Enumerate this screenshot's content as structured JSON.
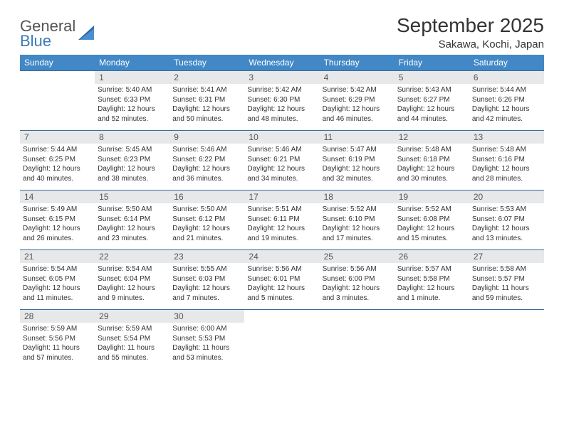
{
  "brand": {
    "line1": "General",
    "line2": "Blue"
  },
  "title": "September 2025",
  "location": "Sakawa, Kochi, Japan",
  "colors": {
    "header_bg": "#4288c6",
    "header_text": "#ffffff",
    "daynum_bg": "#e6e8ea",
    "daynum_text": "#555555",
    "border": "#3a6a9a",
    "body_text": "#333333",
    "logo_gray": "#555555",
    "logo_blue": "#3a7ab8",
    "page_bg": "#ffffff"
  },
  "typography": {
    "title_fontsize": 28,
    "location_fontsize": 15,
    "dayhead_fontsize": 12,
    "daynum_fontsize": 12,
    "info_fontsize": 10,
    "logo_fontsize": 22
  },
  "day_headers": [
    "Sunday",
    "Monday",
    "Tuesday",
    "Wednesday",
    "Thursday",
    "Friday",
    "Saturday"
  ],
  "weeks": [
    [
      {
        "n": "",
        "sr": "",
        "ss": "",
        "dl": "",
        "empty": true
      },
      {
        "n": "1",
        "sr": "Sunrise: 5:40 AM",
        "ss": "Sunset: 6:33 PM",
        "dl": "Daylight: 12 hours and 52 minutes."
      },
      {
        "n": "2",
        "sr": "Sunrise: 5:41 AM",
        "ss": "Sunset: 6:31 PM",
        "dl": "Daylight: 12 hours and 50 minutes."
      },
      {
        "n": "3",
        "sr": "Sunrise: 5:42 AM",
        "ss": "Sunset: 6:30 PM",
        "dl": "Daylight: 12 hours and 48 minutes."
      },
      {
        "n": "4",
        "sr": "Sunrise: 5:42 AM",
        "ss": "Sunset: 6:29 PM",
        "dl": "Daylight: 12 hours and 46 minutes."
      },
      {
        "n": "5",
        "sr": "Sunrise: 5:43 AM",
        "ss": "Sunset: 6:27 PM",
        "dl": "Daylight: 12 hours and 44 minutes."
      },
      {
        "n": "6",
        "sr": "Sunrise: 5:44 AM",
        "ss": "Sunset: 6:26 PM",
        "dl": "Daylight: 12 hours and 42 minutes."
      }
    ],
    [
      {
        "n": "7",
        "sr": "Sunrise: 5:44 AM",
        "ss": "Sunset: 6:25 PM",
        "dl": "Daylight: 12 hours and 40 minutes."
      },
      {
        "n": "8",
        "sr": "Sunrise: 5:45 AM",
        "ss": "Sunset: 6:23 PM",
        "dl": "Daylight: 12 hours and 38 minutes."
      },
      {
        "n": "9",
        "sr": "Sunrise: 5:46 AM",
        "ss": "Sunset: 6:22 PM",
        "dl": "Daylight: 12 hours and 36 minutes."
      },
      {
        "n": "10",
        "sr": "Sunrise: 5:46 AM",
        "ss": "Sunset: 6:21 PM",
        "dl": "Daylight: 12 hours and 34 minutes."
      },
      {
        "n": "11",
        "sr": "Sunrise: 5:47 AM",
        "ss": "Sunset: 6:19 PM",
        "dl": "Daylight: 12 hours and 32 minutes."
      },
      {
        "n": "12",
        "sr": "Sunrise: 5:48 AM",
        "ss": "Sunset: 6:18 PM",
        "dl": "Daylight: 12 hours and 30 minutes."
      },
      {
        "n": "13",
        "sr": "Sunrise: 5:48 AM",
        "ss": "Sunset: 6:16 PM",
        "dl": "Daylight: 12 hours and 28 minutes."
      }
    ],
    [
      {
        "n": "14",
        "sr": "Sunrise: 5:49 AM",
        "ss": "Sunset: 6:15 PM",
        "dl": "Daylight: 12 hours and 26 minutes."
      },
      {
        "n": "15",
        "sr": "Sunrise: 5:50 AM",
        "ss": "Sunset: 6:14 PM",
        "dl": "Daylight: 12 hours and 23 minutes."
      },
      {
        "n": "16",
        "sr": "Sunrise: 5:50 AM",
        "ss": "Sunset: 6:12 PM",
        "dl": "Daylight: 12 hours and 21 minutes."
      },
      {
        "n": "17",
        "sr": "Sunrise: 5:51 AM",
        "ss": "Sunset: 6:11 PM",
        "dl": "Daylight: 12 hours and 19 minutes."
      },
      {
        "n": "18",
        "sr": "Sunrise: 5:52 AM",
        "ss": "Sunset: 6:10 PM",
        "dl": "Daylight: 12 hours and 17 minutes."
      },
      {
        "n": "19",
        "sr": "Sunrise: 5:52 AM",
        "ss": "Sunset: 6:08 PM",
        "dl": "Daylight: 12 hours and 15 minutes."
      },
      {
        "n": "20",
        "sr": "Sunrise: 5:53 AM",
        "ss": "Sunset: 6:07 PM",
        "dl": "Daylight: 12 hours and 13 minutes."
      }
    ],
    [
      {
        "n": "21",
        "sr": "Sunrise: 5:54 AM",
        "ss": "Sunset: 6:05 PM",
        "dl": "Daylight: 12 hours and 11 minutes."
      },
      {
        "n": "22",
        "sr": "Sunrise: 5:54 AM",
        "ss": "Sunset: 6:04 PM",
        "dl": "Daylight: 12 hours and 9 minutes."
      },
      {
        "n": "23",
        "sr": "Sunrise: 5:55 AM",
        "ss": "Sunset: 6:03 PM",
        "dl": "Daylight: 12 hours and 7 minutes."
      },
      {
        "n": "24",
        "sr": "Sunrise: 5:56 AM",
        "ss": "Sunset: 6:01 PM",
        "dl": "Daylight: 12 hours and 5 minutes."
      },
      {
        "n": "25",
        "sr": "Sunrise: 5:56 AM",
        "ss": "Sunset: 6:00 PM",
        "dl": "Daylight: 12 hours and 3 minutes."
      },
      {
        "n": "26",
        "sr": "Sunrise: 5:57 AM",
        "ss": "Sunset: 5:58 PM",
        "dl": "Daylight: 12 hours and 1 minute."
      },
      {
        "n": "27",
        "sr": "Sunrise: 5:58 AM",
        "ss": "Sunset: 5:57 PM",
        "dl": "Daylight: 11 hours and 59 minutes."
      }
    ],
    [
      {
        "n": "28",
        "sr": "Sunrise: 5:59 AM",
        "ss": "Sunset: 5:56 PM",
        "dl": "Daylight: 11 hours and 57 minutes."
      },
      {
        "n": "29",
        "sr": "Sunrise: 5:59 AM",
        "ss": "Sunset: 5:54 PM",
        "dl": "Daylight: 11 hours and 55 minutes."
      },
      {
        "n": "30",
        "sr": "Sunrise: 6:00 AM",
        "ss": "Sunset: 5:53 PM",
        "dl": "Daylight: 11 hours and 53 minutes."
      },
      {
        "n": "",
        "sr": "",
        "ss": "",
        "dl": "",
        "empty": true
      },
      {
        "n": "",
        "sr": "",
        "ss": "",
        "dl": "",
        "empty": true
      },
      {
        "n": "",
        "sr": "",
        "ss": "",
        "dl": "",
        "empty": true
      },
      {
        "n": "",
        "sr": "",
        "ss": "",
        "dl": "",
        "empty": true
      }
    ]
  ]
}
